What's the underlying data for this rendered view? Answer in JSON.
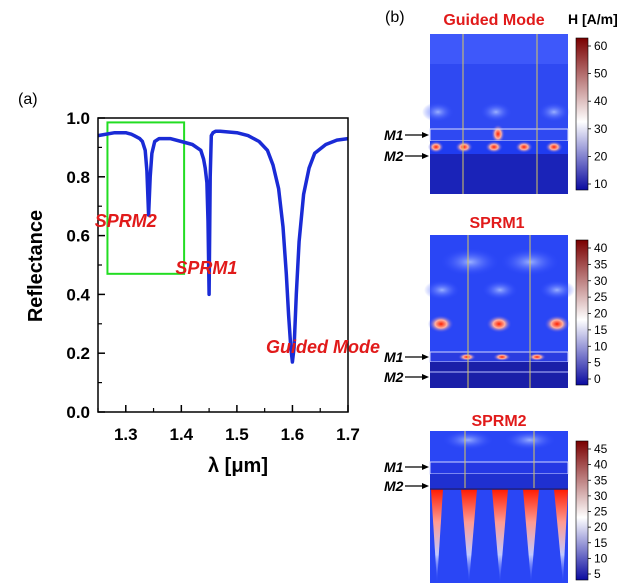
{
  "panel_a": {
    "letter": "(a)",
    "chart_data": {
      "type": "line",
      "xlabel": "λ [μm]",
      "ylabel": "Reflectance",
      "xlim": [
        1.25,
        1.7
      ],
      "ylim": [
        0.0,
        1.0
      ],
      "xticks": [
        "1.3",
        "1.4",
        "1.5",
        "1.6",
        "1.7"
      ],
      "yticks": [
        "0.0",
        "0.2",
        "0.4",
        "0.6",
        "0.8",
        "1.0"
      ],
      "grid": false,
      "series": [
        {
          "color": "#1a2bd6",
          "x": [
            1.25,
            1.28,
            1.3,
            1.31,
            1.315,
            1.32,
            1.325,
            1.33,
            1.335,
            1.338,
            1.341,
            1.344,
            1.347,
            1.352,
            1.36,
            1.38,
            1.4,
            1.42,
            1.435,
            1.44,
            1.443,
            1.446,
            1.448,
            1.45,
            1.452,
            1.454,
            1.457,
            1.462,
            1.47,
            1.5,
            1.52,
            1.54,
            1.555,
            1.565,
            1.575,
            1.583,
            1.589,
            1.593,
            1.597,
            1.6,
            1.603,
            1.607,
            1.612,
            1.62,
            1.63,
            1.64,
            1.66,
            1.68,
            1.7
          ],
          "y": [
            0.94,
            0.95,
            0.95,
            0.945,
            0.94,
            0.935,
            0.93,
            0.92,
            0.89,
            0.82,
            0.67,
            0.8,
            0.88,
            0.92,
            0.93,
            0.93,
            0.92,
            0.91,
            0.89,
            0.86,
            0.83,
            0.78,
            0.65,
            0.4,
            0.8,
            0.94,
            0.95,
            0.955,
            0.955,
            0.95,
            0.94,
            0.92,
            0.89,
            0.84,
            0.76,
            0.63,
            0.47,
            0.33,
            0.22,
            0.17,
            0.22,
            0.4,
            0.58,
            0.74,
            0.83,
            0.88,
            0.91,
            0.925,
            0.93
          ]
        }
      ],
      "annotations": [
        {
          "text": "SPRM2",
          "x": 1.3,
          "y": 0.63
        },
        {
          "text": "SPRM1",
          "x": 1.445,
          "y": 0.47
        },
        {
          "text": "Guided Mode",
          "x": 1.655,
          "y": 0.2
        }
      ],
      "highlight_box": {
        "x": [
          1.267,
          1.405
        ],
        "y": [
          0.47,
          0.985
        ],
        "color": "#22dd22"
      }
    }
  },
  "panel_b": {
    "letter": "(b)",
    "unit": "H [A/m]",
    "layer_labels": [
      "M1",
      "M2"
    ],
    "maps": [
      {
        "title": "Guided Mode",
        "colorbar_ticks": [
          "60",
          "50",
          "40",
          "30",
          "20",
          "10"
        ]
      },
      {
        "title": "SPRM1",
        "colorbar_ticks": [
          "40",
          "35",
          "30",
          "25",
          "20",
          "15",
          "10",
          "5",
          "0"
        ]
      },
      {
        "title": "SPRM2",
        "colorbar_ticks": [
          "45",
          "40",
          "35",
          "30",
          "25",
          "20",
          "15",
          "10",
          "5"
        ]
      }
    ]
  }
}
